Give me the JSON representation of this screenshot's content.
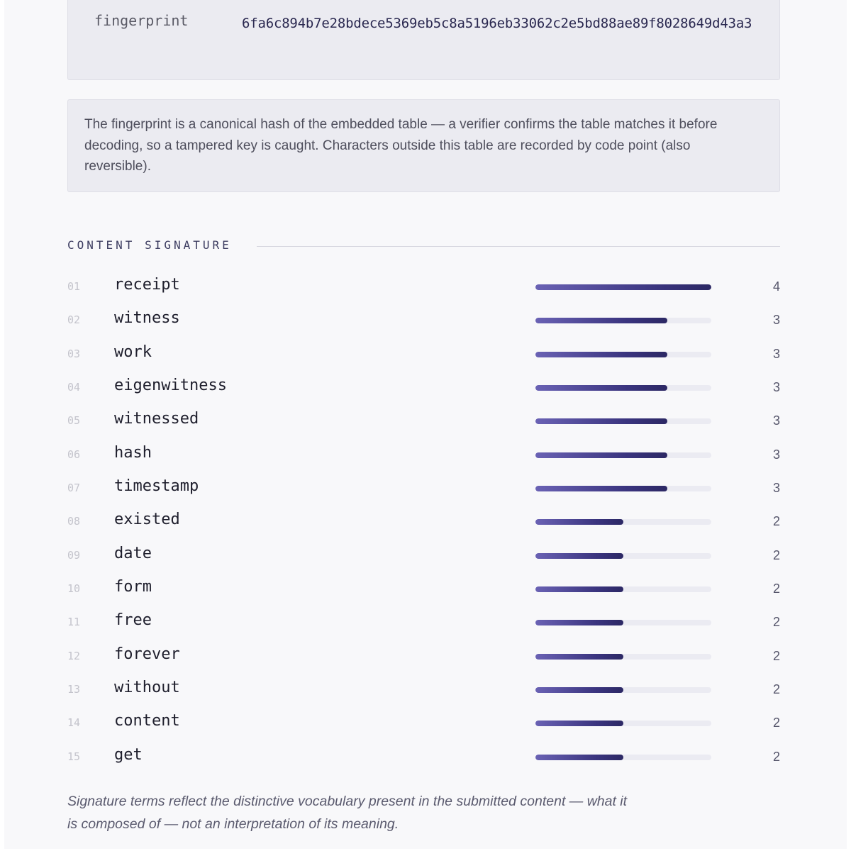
{
  "fingerprint": {
    "label": "fingerprint",
    "value": "6fa6c894b7e28bdece5369eb5c8a5196eb33062c2e5bd88ae89f8028649d43a3"
  },
  "note": {
    "text": "The fingerprint is a canonical hash of the embedded table — a verifier confirms the table matches it before decoding, so a tampered key is caught. Characters outside this table are recorded by code point (also reversible)."
  },
  "signature": {
    "title": "CONTENT SIGNATURE",
    "max_count": 4,
    "terms": [
      {
        "num": "01",
        "term": "receipt",
        "count": 4
      },
      {
        "num": "02",
        "term": "witness",
        "count": 3
      },
      {
        "num": "03",
        "term": "work",
        "count": 3
      },
      {
        "num": "04",
        "term": "eigenwitness",
        "count": 3
      },
      {
        "num": "05",
        "term": "witnessed",
        "count": 3
      },
      {
        "num": "06",
        "term": "hash",
        "count": 3
      },
      {
        "num": "07",
        "term": "timestamp",
        "count": 3
      },
      {
        "num": "08",
        "term": "existed",
        "count": 2
      },
      {
        "num": "09",
        "term": "date",
        "count": 2
      },
      {
        "num": "10",
        "term": "form",
        "count": 2
      },
      {
        "num": "11",
        "term": "free",
        "count": 2
      },
      {
        "num": "12",
        "term": "forever",
        "count": 2
      },
      {
        "num": "13",
        "term": "without",
        "count": 2
      },
      {
        "num": "14",
        "term": "content",
        "count": 2
      },
      {
        "num": "15",
        "term": "get",
        "count": 2
      }
    ]
  },
  "footnote": {
    "text": "Signature terms reflect the distinctive vocabulary present in the submitted content — what it is composed of — not an interpretation of its meaning."
  },
  "colors": {
    "bar_start": "#6a62b4",
    "bar_end": "#2c2864",
    "track": "#ebebf2"
  }
}
